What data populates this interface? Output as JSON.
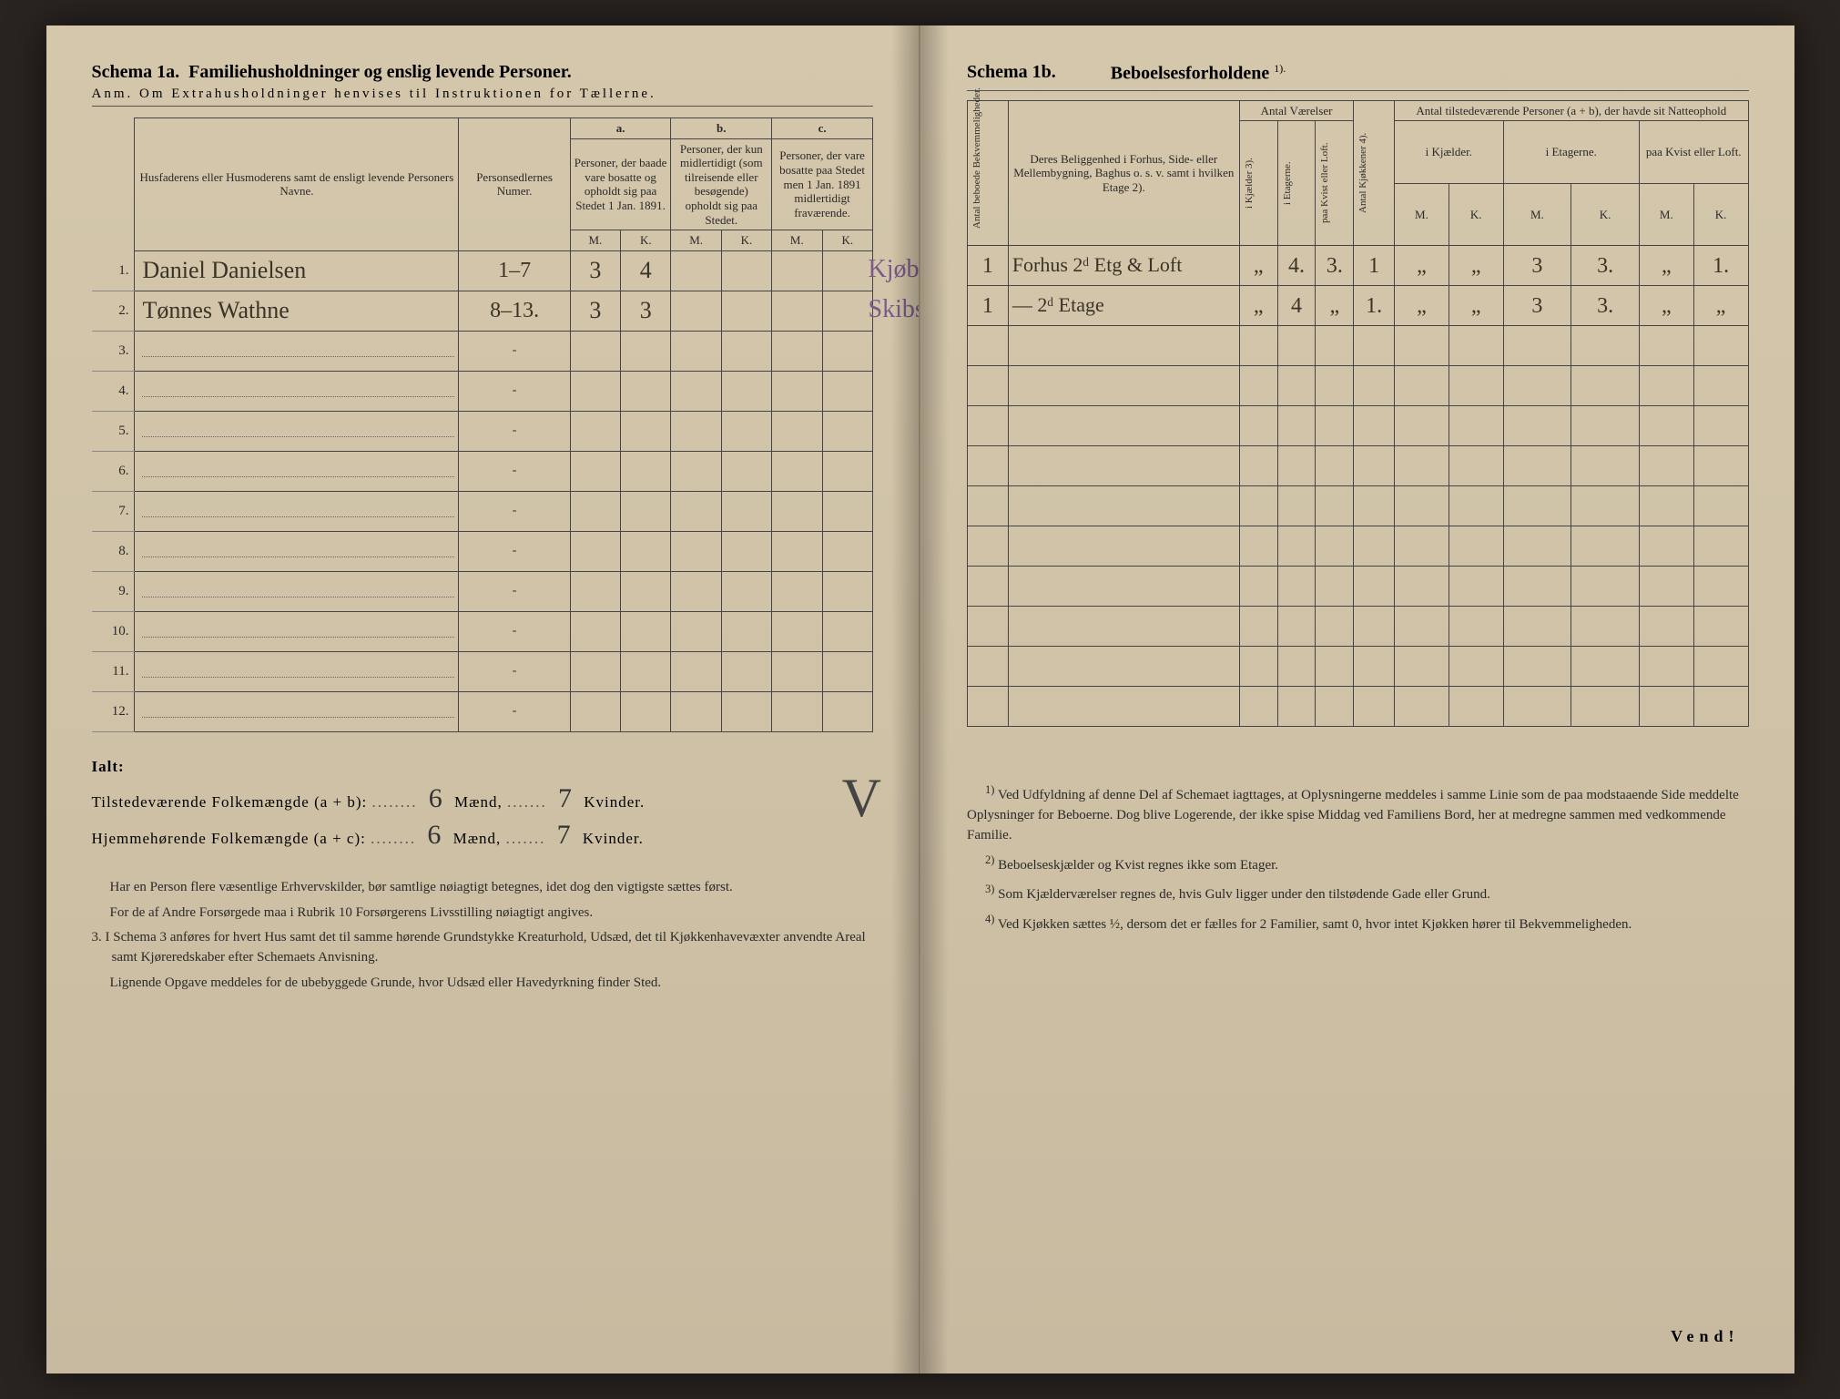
{
  "left": {
    "schema_label": "Schema 1a.",
    "schema_title": "Familiehusholdninger og enslig levende Personer.",
    "anm": "Anm. Om Extrahusholdninger henvises til Instruktionen for Tællerne.",
    "header": {
      "col1": "Husfaderens eller Husmoderens samt de ensligt levende Personers Navne.",
      "col2": "Personsedlernes Numer.",
      "a_label": "a.",
      "a_text": "Personer, der baade vare bosatte og opholdt sig paa Stedet 1 Jan. 1891.",
      "b_label": "b.",
      "b_text": "Personer, der kun midlertidigt (som tilreisende eller besøgende) opholdt sig paa Stedet.",
      "c_label": "c.",
      "c_text": "Personer, der vare bosatte paa Stedet men 1 Jan. 1891 midlertidigt fraværende.",
      "M": "M.",
      "K": "K."
    },
    "rows": [
      {
        "n": "1.",
        "name": "Daniel Danielsen",
        "num": "1–7",
        "aM": "3",
        "aK": "4",
        "note": "Kjøbm."
      },
      {
        "n": "2.",
        "name": "Tønnes Wathne",
        "num": "8–13.",
        "aM": "3",
        "aK": "3",
        "note": "Skibsf."
      },
      {
        "n": "3.",
        "name": ""
      },
      {
        "n": "4.",
        "name": ""
      },
      {
        "n": "5.",
        "name": ""
      },
      {
        "n": "6.",
        "name": ""
      },
      {
        "n": "7.",
        "name": ""
      },
      {
        "n": "8.",
        "name": ""
      },
      {
        "n": "9.",
        "name": ""
      },
      {
        "n": "10.",
        "name": ""
      },
      {
        "n": "11.",
        "name": ""
      },
      {
        "n": "12.",
        "name": ""
      }
    ],
    "totals": {
      "ialt": "Ialt:",
      "line1_label": "Tilstedeværende Folkemængde (a + b):",
      "line2_label": "Hjemmehørende Folkemængde (a + c):",
      "maend": "Mænd,",
      "kvinder": "Kvinder.",
      "m1": "6",
      "k1": "7",
      "m2": "6",
      "k2": "7"
    },
    "footnotes": {
      "p1": "Har en Person flere væsentlige Erhvervskilder, bør samtlige nøiagtigt betegnes, idet dog den vigtigste sættes først.",
      "p2": "For de af Andre Forsørgede maa i Rubrik 10 Forsørgerens Livsstilling nøiagtigt angives.",
      "p3n": "3.",
      "p3": "I Schema 3 anføres for hvert Hus samt det til samme hørende Grundstykke Kreaturhold, Udsæd, det til Kjøkkenhavevæxter anvendte Areal samt Kjøreredskaber efter Schemaets Anvisning.",
      "p4": "Lignende Opgave meddeles for de ubebyggede Grunde, hvor Udsæd eller Havedyrkning finder Sted."
    }
  },
  "right": {
    "schema_label": "Schema 1b.",
    "schema_title": "Beboelsesforholdene",
    "sup": "1).",
    "header": {
      "v1": "Antal beboede Bekvemmeligheder.",
      "col_belig": "Deres Beliggenhed i Forhus, Side- eller Mellembygning, Baghus o. s. v. samt i hvilken Etage 2).",
      "grp_vaer": "Antal Værelser",
      "v_kj": "i Kjælder 3).",
      "v_et": "i Etagerne.",
      "v_kl": "paa Kvist eller Loft.",
      "v_kjok": "Antal Kjøkkener 4).",
      "grp_pers": "Antal tilstedeværende Personer (a + b), der havde sit Natteophold",
      "p_kj": "i Kjælder.",
      "p_et": "i Etagerne.",
      "p_kl": "paa Kvist eller Loft.",
      "M": "M.",
      "K": "K."
    },
    "rows": [
      {
        "bekv": "1",
        "belig": "Forhus 2ᵈ Etg & Loft",
        "vkj": "„",
        "vet": "4.",
        "vkl": "3.",
        "kjok": "1",
        "pkjM": "„",
        "pkjK": "„",
        "petM": "3",
        "petK": "3.",
        "pklM": "„",
        "pklK": "1."
      },
      {
        "bekv": "1",
        "belig": "— 2ᵈ Etage",
        "vkj": "„",
        "vet": "4",
        "vkl": "„",
        "kjok": "1.",
        "pkjM": "„",
        "pkjK": "„",
        "petM": "3",
        "petK": "3.",
        "pklM": "„",
        "pklK": "„"
      }
    ],
    "footnotes": {
      "f1n": "1)",
      "f1": "Ved Udfyldning af denne Del af Schemaet iagttages, at Oplysningerne meddeles i samme Linie som de paa modstaaende Side meddelte Oplysninger for Beboerne. Dog blive Logerende, der ikke spise Middag ved Familiens Bord, her at medregne sammen med vedkommende Familie.",
      "f2n": "2)",
      "f2": "Beboelseskjælder og Kvist regnes ikke som Etager.",
      "f3n": "3)",
      "f3": "Som Kjælderværelser regnes de, hvis Gulv ligger under den tilstødende Gade eller Grund.",
      "f4n": "4)",
      "f4": "Ved Kjøkken sættes ½, dersom det er fælles for 2 Familier, samt 0, hvor intet Kjøkken hører til Bekvemmeligheden."
    },
    "vend": "Vend!"
  },
  "style": {
    "paper_bg": "#cfc2a6",
    "ink": "#2a2a2a",
    "handwriting": "#3a3428",
    "purple": "#7a5a8a",
    "border": "#444444"
  }
}
